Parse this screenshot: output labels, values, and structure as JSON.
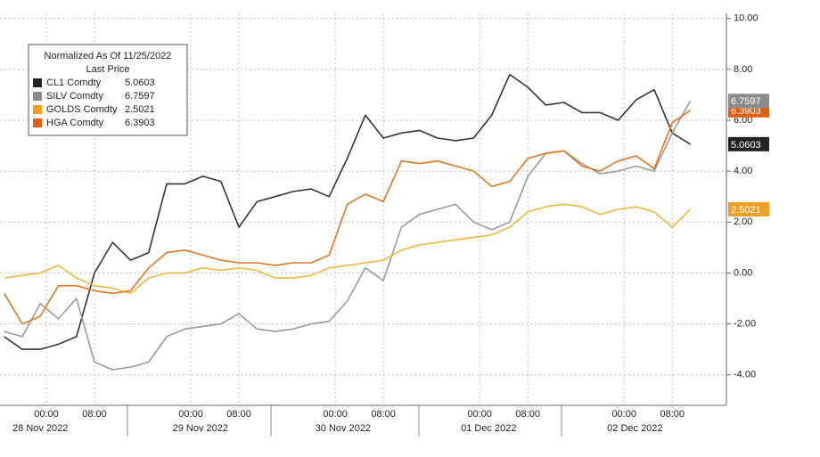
{
  "chart_data": {
    "type": "line",
    "legend_title": "Normalized As Of 11/25/2022",
    "legend_subtitle": "Last Price",
    "x": [
      -7,
      -4,
      -1,
      2,
      5,
      8,
      11,
      14,
      17,
      20,
      23,
      26,
      29,
      32,
      35,
      38,
      41,
      44,
      47,
      50,
      53,
      56,
      59,
      62,
      65,
      68,
      71,
      74,
      77,
      80,
      83,
      86,
      89,
      92,
      95,
      98,
      101,
      104,
      107
    ],
    "series": [
      {
        "name": "CL1 Comdty",
        "color": "#333333",
        "tag_color": "#222222",
        "last_price": 5.0603,
        "values": [
          -2.5,
          -3,
          -3,
          -2.8,
          -2.5,
          0,
          1.2,
          0.5,
          0.8,
          3.5,
          3.5,
          3.8,
          3.6,
          1.8,
          2.8,
          3,
          3.2,
          3.3,
          3,
          4.5,
          6.2,
          5.3,
          5.5,
          5.6,
          5.3,
          5.2,
          5.3,
          6.2,
          7.8,
          7.3,
          6.6,
          6.7,
          6.3,
          6.3,
          6.0,
          6.8,
          7.2,
          5.5,
          5.06
        ]
      },
      {
        "name": "SILV Comdty",
        "color": "#9a9a9a",
        "tag_color": "#8c8c8c",
        "last_price": 6.7597,
        "values": [
          -2.3,
          -2.5,
          -1.2,
          -1.8,
          -1,
          -3.5,
          -3.8,
          -3.7,
          -3.5,
          -2.5,
          -2.2,
          -2.1,
          -2.0,
          -1.6,
          -2.2,
          -2.3,
          -2.2,
          -2,
          -1.9,
          -1.1,
          0.2,
          -0.3,
          1.8,
          2.3,
          2.5,
          2.7,
          2.0,
          1.7,
          2.0,
          3.8,
          4.7,
          4.8,
          4.3,
          3.9,
          4.0,
          4.2,
          4.0,
          5.5,
          6.76
        ]
      },
      {
        "name": "GOLDS Comdty",
        "color": "#f0b840",
        "tag_color": "#f0a020",
        "last_price": 2.5021,
        "values": [
          -0.2,
          -0.1,
          0.0,
          0.3,
          -0.2,
          -0.5,
          -0.6,
          -0.8,
          -0.2,
          0.0,
          0.0,
          0.2,
          0.1,
          0.2,
          0.1,
          -0.2,
          -0.2,
          -0.1,
          0.2,
          0.3,
          0.4,
          0.5,
          0.9,
          1.1,
          1.2,
          1.3,
          1.4,
          1.5,
          1.8,
          2.4,
          2.6,
          2.7,
          2.6,
          2.3,
          2.5,
          2.6,
          2.4,
          1.8,
          2.5
        ]
      },
      {
        "name": "HGA Comdty",
        "color": "#e0761e",
        "tag_color": "#e06010",
        "last_price": 6.3903,
        "values": [
          -0.8,
          -2,
          -1.7,
          -0.5,
          -0.5,
          -0.7,
          -0.8,
          -0.7,
          0.2,
          0.8,
          0.9,
          0.7,
          0.5,
          0.4,
          0.4,
          0.3,
          0.4,
          0.4,
          0.7,
          2.7,
          3.1,
          2.8,
          4.4,
          4.3,
          4.4,
          4.2,
          4.0,
          3.4,
          3.6,
          4.5,
          4.7,
          4.8,
          4.2,
          4.0,
          4.4,
          4.6,
          4.1,
          5.9,
          6.39
        ]
      }
    ],
    "xlim": [
      -7.7,
      113
    ],
    "xticks": [
      {
        "value": 0,
        "label": "00:00"
      },
      {
        "value": 8,
        "label": "08:00"
      },
      {
        "value": 24,
        "label": "00:00"
      },
      {
        "value": 32,
        "label": "08:00"
      },
      {
        "value": 48,
        "label": "00:00"
      },
      {
        "value": 56,
        "label": "08:00"
      },
      {
        "value": 72,
        "label": "00:00"
      },
      {
        "value": 80,
        "label": "08:00"
      },
      {
        "value": 96,
        "label": "00:00"
      },
      {
        "value": 104,
        "label": "08:00"
      }
    ],
    "date_labels": [
      {
        "value": -1,
        "label": "28 Nov 2022"
      },
      {
        "value": 25.6,
        "label": "29 Nov 2022"
      },
      {
        "value": 49.3,
        "label": "30 Nov 2022"
      },
      {
        "value": 73.5,
        "label": "01 Dec 2022"
      },
      {
        "value": 97.8,
        "label": "02 Dec 2022"
      }
    ],
    "ylim": [
      -5.2,
      10.2
    ],
    "yticks": [
      {
        "value": -4,
        "label": "-4.00"
      },
      {
        "value": -2,
        "label": "-2.00"
      },
      {
        "value": 0,
        "label": "0.00"
      },
      {
        "value": 2,
        "label": "2.00"
      },
      {
        "value": 4,
        "label": "4.00"
      },
      {
        "value": 6,
        "label": "6.00"
      },
      {
        "value": 8,
        "label": "8.00"
      },
      {
        "value": 10,
        "label": "10.00"
      }
    ],
    "grid": true
  }
}
